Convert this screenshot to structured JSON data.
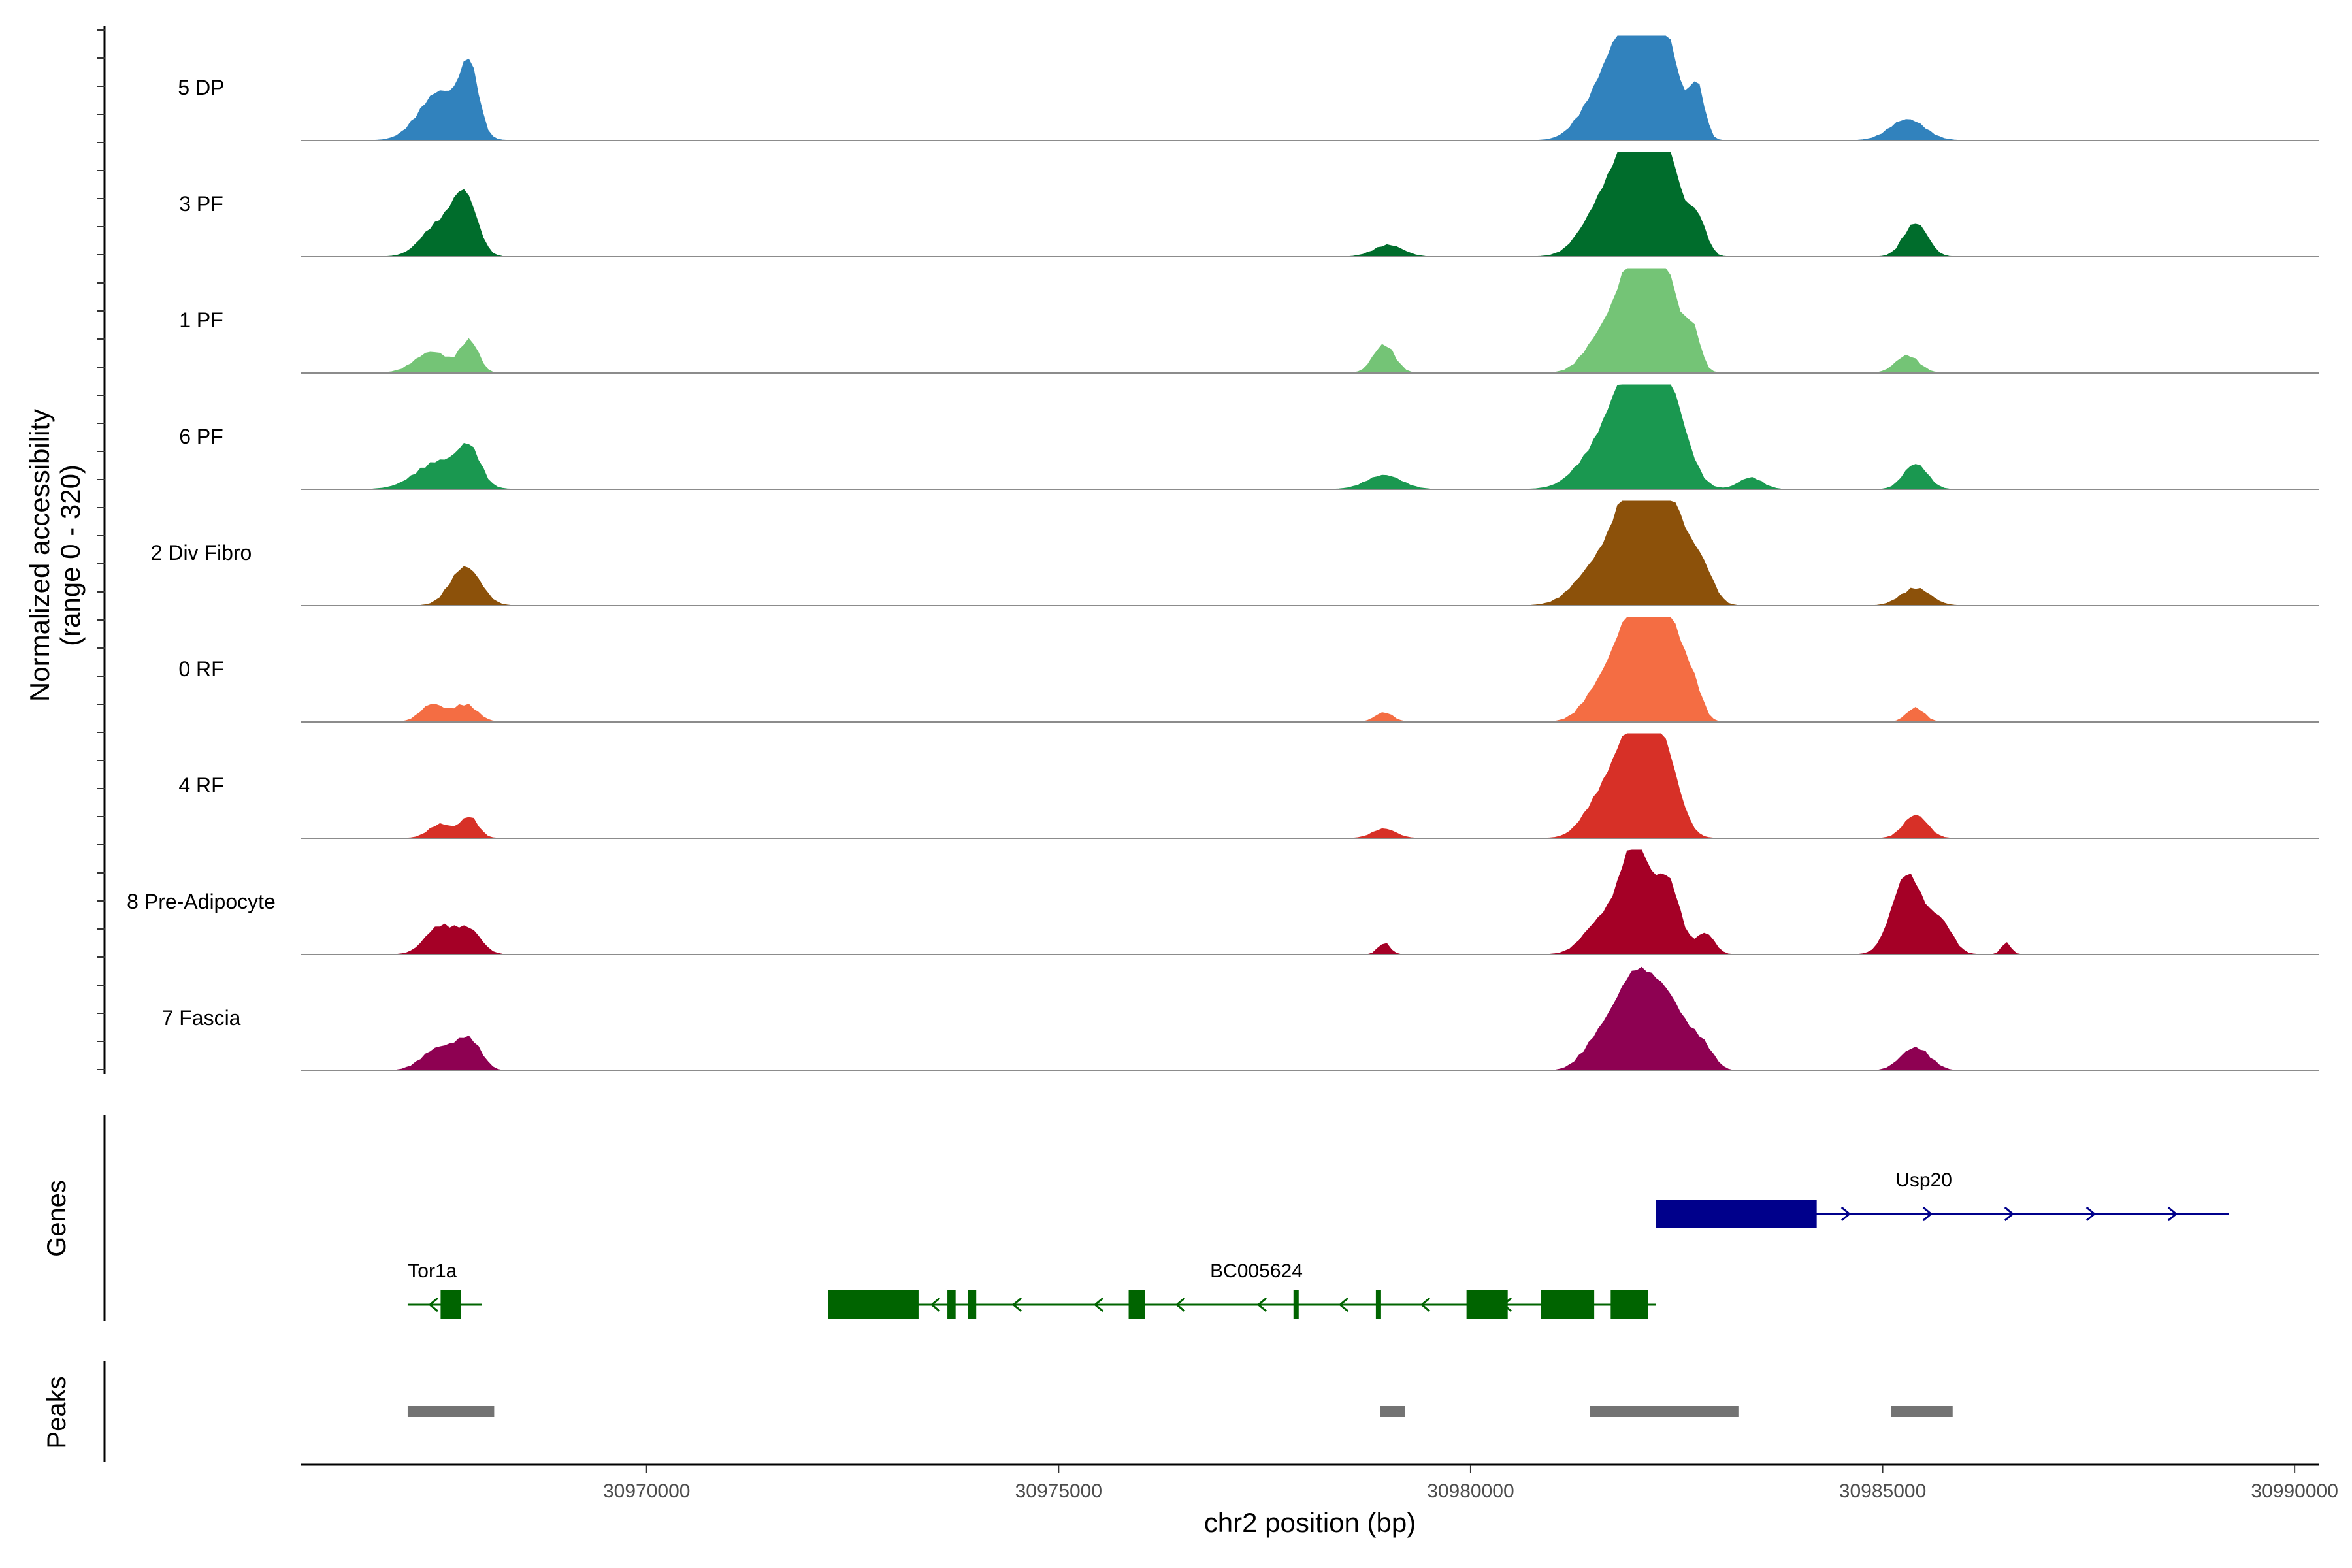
{
  "chart_data": {
    "type": "area",
    "ylabel": "Normalized accessibility",
    "ylabel_range": "(range 0 - 320)",
    "ylim": [
      0,
      320
    ],
    "xlabel": "chr2 position (bp)",
    "xlim": [
      30965800,
      30990300
    ],
    "x_ticks": [
      30970000,
      30975000,
      30980000,
      30985000,
      30990000
    ],
    "x_tick_labels": [
      "30970000",
      "30975000",
      "30980000",
      "30985000",
      "30990000"
    ],
    "tracks": [
      {
        "name": "5 DP",
        "color": "#3182bd",
        "peaks": [
          [
            30967500,
            0.45,
            350
          ],
          [
            30967850,
            0.6,
            150
          ],
          [
            30981600,
            0.4,
            350
          ],
          [
            30982000,
            1.0,
            350
          ],
          [
            30982300,
            0.85,
            300
          ],
          [
            30982750,
            0.45,
            120
          ],
          [
            30985300,
            0.18,
            300
          ]
        ]
      },
      {
        "name": "3 PF",
        "color": "#006d2c",
        "peaks": [
          [
            30967500,
            0.3,
            300
          ],
          [
            30967800,
            0.5,
            200
          ],
          [
            30979000,
            0.1,
            250
          ],
          [
            30981600,
            0.4,
            350
          ],
          [
            30982000,
            0.9,
            350
          ],
          [
            30982300,
            1.0,
            300
          ],
          [
            30982750,
            0.3,
            150
          ],
          [
            30985400,
            0.3,
            200
          ]
        ]
      },
      {
        "name": "1 PF",
        "color": "#74c476",
        "peaks": [
          [
            30967400,
            0.18,
            300
          ],
          [
            30967850,
            0.28,
            150
          ],
          [
            30978950,
            0.25,
            180
          ],
          [
            30981600,
            0.3,
            300
          ],
          [
            30982000,
            0.9,
            300
          ],
          [
            30982300,
            0.95,
            300
          ],
          [
            30982700,
            0.3,
            120
          ],
          [
            30985300,
            0.15,
            200
          ]
        ]
      },
      {
        "name": "6 PF",
        "color": "#1a9850",
        "peaks": [
          [
            30967500,
            0.25,
            400
          ],
          [
            30967850,
            0.3,
            180
          ],
          [
            30978950,
            0.12,
            300
          ],
          [
            30981600,
            0.35,
            400
          ],
          [
            30982000,
            1.0,
            350
          ],
          [
            30982400,
            0.8,
            300
          ],
          [
            30983400,
            0.1,
            200
          ],
          [
            30985400,
            0.22,
            200
          ]
        ]
      },
      {
        "name": "2 Div Fibro",
        "color": "#8c510a",
        "peaks": [
          [
            30967800,
            0.35,
            250
          ],
          [
            30981600,
            0.4,
            400
          ],
          [
            30982000,
            1.0,
            300
          ],
          [
            30982400,
            0.95,
            300
          ],
          [
            30982800,
            0.3,
            200
          ],
          [
            30985400,
            0.15,
            250
          ]
        ]
      },
      {
        "name": "0 RF",
        "color": "#f46d43",
        "peaks": [
          [
            30967400,
            0.15,
            200
          ],
          [
            30967800,
            0.15,
            200
          ],
          [
            30978950,
            0.08,
            150
          ],
          [
            30981600,
            0.3,
            300
          ],
          [
            30982000,
            1.0,
            300
          ],
          [
            30982400,
            0.9,
            250
          ],
          [
            30982700,
            0.25,
            150
          ],
          [
            30985400,
            0.12,
            150
          ]
        ]
      },
      {
        "name": "4 RF",
        "color": "#d73027",
        "peaks": [
          [
            30967500,
            0.12,
            200
          ],
          [
            30967850,
            0.18,
            150
          ],
          [
            30978950,
            0.08,
            200
          ],
          [
            30981600,
            0.35,
            300
          ],
          [
            30982000,
            1.0,
            300
          ],
          [
            30982350,
            0.7,
            250
          ],
          [
            30985400,
            0.2,
            200
          ]
        ]
      },
      {
        "name": "8 Pre-Adipocyte",
        "color": "#a50026",
        "peaks": [
          [
            30967500,
            0.25,
            250
          ],
          [
            30967850,
            0.2,
            200
          ],
          [
            30978950,
            0.1,
            100
          ],
          [
            30981600,
            0.3,
            300
          ],
          [
            30982000,
            1.0,
            250
          ],
          [
            30982400,
            0.65,
            200
          ],
          [
            30982850,
            0.18,
            150
          ],
          [
            30985300,
            0.75,
            250
          ],
          [
            30985700,
            0.28,
            200
          ],
          [
            30986500,
            0.1,
            80
          ]
        ]
      },
      {
        "name": "7 Fascia",
        "color": "#8e0152",
        "peaks": [
          [
            30967500,
            0.2,
            300
          ],
          [
            30967850,
            0.25,
            200
          ],
          [
            30981600,
            0.3,
            300
          ],
          [
            30982000,
            0.8,
            300
          ],
          [
            30982400,
            0.6,
            300
          ],
          [
            30982800,
            0.2,
            200
          ],
          [
            30985400,
            0.2,
            250
          ]
        ]
      }
    ],
    "genes_panel_title": "Genes",
    "genes": [
      {
        "name": "Usp20",
        "strand": "+",
        "color": "#00008b",
        "start": 30982250,
        "end": 30989200,
        "exons": [
          [
            30982250,
            30984200
          ]
        ]
      },
      {
        "name": "BC005624",
        "strand": "-",
        "color": "#006400",
        "start": 30972200,
        "end": 30982250,
        "exons": [
          [
            30972200,
            30973300
          ],
          [
            30973650,
            30973750
          ],
          [
            30973900,
            30974000
          ],
          [
            30975850,
            30976050
          ],
          [
            30977850,
            30977900
          ],
          [
            30978850,
            30978900
          ],
          [
            30979950,
            30980450
          ],
          [
            30980850,
            30981500
          ],
          [
            30981700,
            30982150
          ]
        ]
      },
      {
        "name": "Tor1a",
        "strand": "-",
        "color": "#006400",
        "start": 30967100,
        "end": 30968000,
        "exons": [
          [
            30967500,
            30967750
          ]
        ]
      }
    ],
    "peaks_panel_title": "Peaks",
    "peak_regions": [
      [
        30967100,
        30968150
      ],
      [
        30978900,
        30979200
      ],
      [
        30981450,
        30983250
      ],
      [
        30985100,
        30985850
      ]
    ]
  }
}
